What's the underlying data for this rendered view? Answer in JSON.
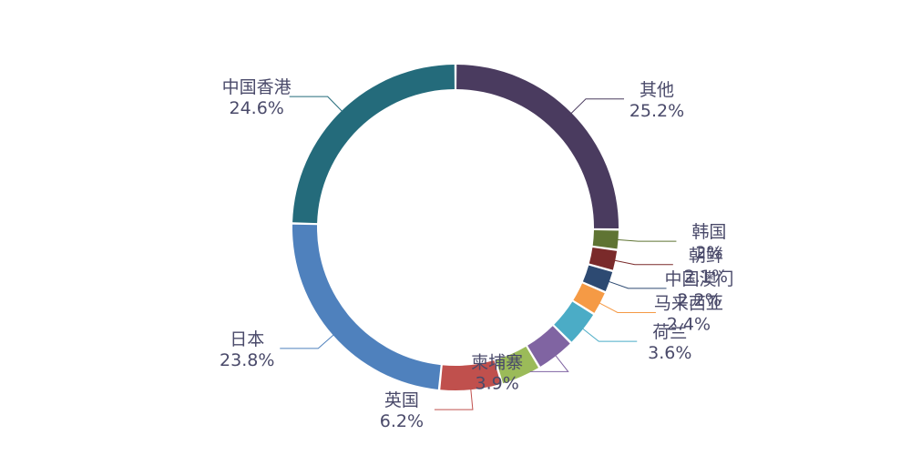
{
  "chart_data": {
    "type": "pie",
    "variant": "donut",
    "start_angle_deg": 0,
    "slices": [
      {
        "name": "其他",
        "value": 25.2,
        "value_label": "25.2%",
        "color": "#4a3b5f",
        "label_side": "right"
      },
      {
        "name": "韩国",
        "value": 2.0,
        "value_label": "2%",
        "color": "#5f7433",
        "label_side": "right"
      },
      {
        "name": "朝鲜",
        "value": 2.1,
        "value_label": "2.1%",
        "color": "#7a2a2a",
        "label_side": "right"
      },
      {
        "name": "中国澳门",
        "value": 2.2,
        "value_label": "2.2%",
        "color": "#2d4a72",
        "label_side": "right"
      },
      {
        "name": "马来西亚",
        "value": 2.4,
        "value_label": "2.4%",
        "color": "#f59a45",
        "label_side": "right"
      },
      {
        "name": "荷兰",
        "value": 3.6,
        "value_label": "3.6%",
        "color": "#4bacc6",
        "label_side": "right"
      },
      {
        "name": "柬埔寨",
        "value": 3.9,
        "value_label": "3.9%",
        "color": "#8064a2",
        "label_side": "left"
      },
      {
        "name": "",
        "value": 4.0,
        "value_label": "",
        "color": "#9bbb59",
        "label_side": "left"
      },
      {
        "name": "英国",
        "value": 6.2,
        "value_label": "6.2%",
        "color": "#c0504d",
        "label_side": "left"
      },
      {
        "name": "日本",
        "value": 23.8,
        "value_label": "23.8%",
        "color": "#4f81bd",
        "label_side": "left"
      },
      {
        "name": "中国香港",
        "value": 24.6,
        "value_label": "24.6%",
        "color": "#246b7b",
        "label_side": "left"
      }
    ]
  }
}
